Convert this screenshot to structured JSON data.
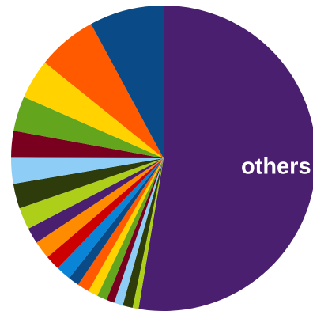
{
  "chart_data": {
    "type": "pie",
    "title": "",
    "start_angle_deg": 0,
    "direction": "clockwise",
    "slices": [
      {
        "label": "others",
        "value": 50.0,
        "color": "#4b1f6f"
      },
      {
        "label": "",
        "value": 0.6,
        "color": "#aecf1a"
      },
      {
        "label": "",
        "value": 1.0,
        "color": "#2e3c0c"
      },
      {
        "label": "",
        "value": 0.9,
        "color": "#8ecdf6"
      },
      {
        "label": "",
        "value": 0.8,
        "color": "#7a001f"
      },
      {
        "label": "",
        "value": 1.0,
        "color": "#63a51d"
      },
      {
        "label": "",
        "value": 1.0,
        "color": "#ffd200"
      },
      {
        "label": "",
        "value": 1.2,
        "color": "#ff5a00"
      },
      {
        "label": "",
        "value": 1.1,
        "color": "#0a4a86"
      },
      {
        "label": "",
        "value": 1.5,
        "color": "#0a84d6"
      },
      {
        "label": "",
        "value": 1.5,
        "color": "#cc0000"
      },
      {
        "label": "",
        "value": 1.8,
        "color": "#ff8c00"
      },
      {
        "label": "",
        "value": 1.6,
        "color": "#4b1f6f"
      },
      {
        "label": "",
        "value": 2.2,
        "color": "#aecf1a"
      },
      {
        "label": "",
        "value": 2.5,
        "color": "#2e3c0c"
      },
      {
        "label": "",
        "value": 2.6,
        "color": "#8ecdf6"
      },
      {
        "label": "",
        "value": 2.7,
        "color": "#7a001f"
      },
      {
        "label": "",
        "value": 3.5,
        "color": "#63a51d"
      },
      {
        "label": "",
        "value": 4.0,
        "color": "#ffd200"
      },
      {
        "label": "",
        "value": 6.0,
        "color": "#ff5a00"
      },
      {
        "label": "",
        "value": 7.5,
        "color": "#0a4a86"
      }
    ]
  }
}
